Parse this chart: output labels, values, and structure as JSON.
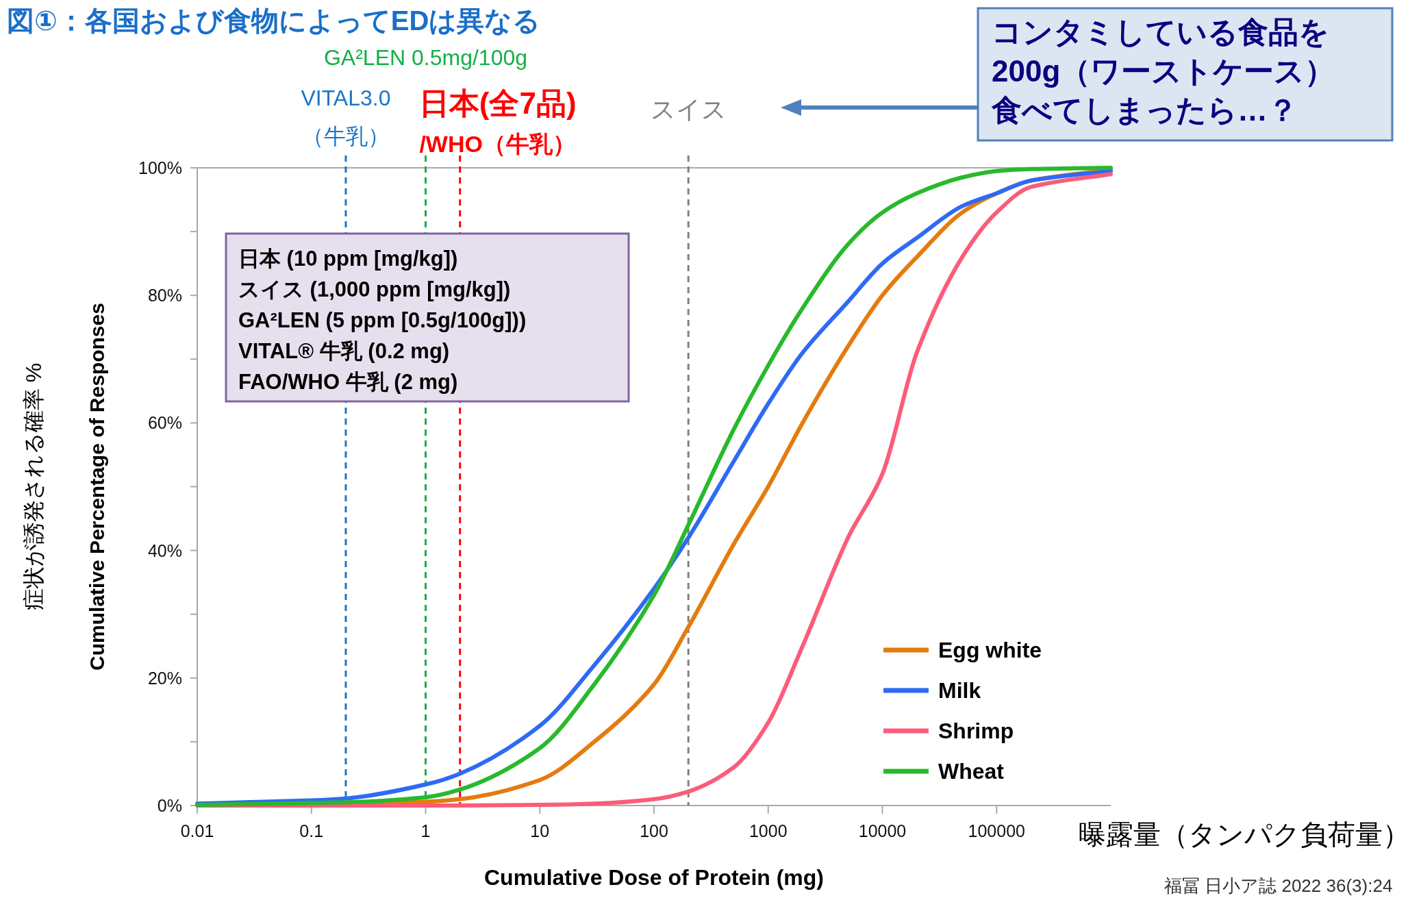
{
  "chart_data": {
    "type": "line",
    "title": "図①：各国および食物によってEDは異なる",
    "xlabel": "Cumulative Dose of Protein (mg)",
    "ylabel": "Cumulative Percentage of Responses",
    "log": "x",
    "xlim": [
      0.01,
      1000000
    ],
    "xticks": [
      0.01,
      0.1,
      1,
      10,
      100,
      1000,
      10000,
      100000
    ],
    "ylim": [
      0,
      100
    ],
    "yticks": [
      {
        "value": 0,
        "label": "0%"
      },
      {
        "value": 10,
        "label": null
      },
      {
        "value": 20,
        "label": "20%"
      },
      {
        "value": 30,
        "label": null
      },
      {
        "value": 40,
        "label": "40%"
      },
      {
        "value": 50,
        "label": null
      },
      {
        "value": 60,
        "label": "60%"
      },
      {
        "value": 70,
        "label": null
      },
      {
        "value": 80,
        "label": "80%"
      },
      {
        "value": 90,
        "label": null
      },
      {
        "value": 100,
        "label": "100%"
      }
    ],
    "x": [
      0.01,
      0.1,
      0.2,
      1,
      2,
      10,
      30,
      100,
      200,
      500,
      1000,
      2000,
      5000,
      10000,
      20000,
      50000,
      100000,
      200000,
      1000000
    ],
    "series": [
      {
        "name": "Egg white",
        "color": "#e57b0f",
        "values": [
          0.1,
          0.2,
          0.3,
          0.6,
          1,
          4,
          10,
          19,
          28,
          41,
          50,
          60,
          72,
          80,
          86,
          93,
          96,
          98,
          99.7
        ]
      },
      {
        "name": "Milk",
        "color": "#2e6af5",
        "values": [
          0.3,
          0.8,
          1.1,
          3.3,
          5,
          12.5,
          22,
          34,
          42,
          54,
          63,
          71,
          79,
          85,
          89,
          94,
          96,
          98,
          99.5
        ]
      },
      {
        "name": "Shrimp",
        "color": "#fb5c7a",
        "values": [
          0,
          0,
          0,
          0,
          0,
          0.1,
          0.3,
          1,
          2.2,
          6,
          13,
          25,
          42,
          52,
          71,
          86,
          93,
          97,
          99
        ]
      },
      {
        "name": "Wheat",
        "color": "#28b92c",
        "values": [
          0.1,
          0.4,
          0.5,
          1.3,
          2.5,
          9,
          19,
          33,
          44,
          59,
          69,
          78,
          88,
          93,
          96,
          98.5,
          99.5,
          99.8,
          100
        ]
      }
    ],
    "ref_lines": [
      {
        "axis": "x",
        "value": 0.2,
        "label": "VITAL3.0\n（牛乳）",
        "color": "#1b75c7",
        "line_style": "dashed"
      },
      {
        "axis": "x",
        "value": 1,
        "label": "GA²LEN 0.5mg/100g",
        "color": "#12b048",
        "line_style": "dashed"
      },
      {
        "axis": "x",
        "value": 2,
        "label": "日本(全7品)\n/WHO（牛乳）",
        "color": "#ff0000",
        "line_style": "dashed"
      },
      {
        "axis": "x",
        "value": 200,
        "label": "スイス",
        "color": "#808080",
        "line_style": "dashed"
      }
    ],
    "annotations": [
      "症状が誘発される確率 %",
      "曝露量（タンパク負荷量）",
      "日本 (10 ppm [mg/kg])",
      "スイス (1,000 ppm [mg/kg])",
      "GA²LEN (5 ppm [0.5g/100g]))",
      "VITAL® 牛乳 (0.2 mg)",
      "FAO/WHO 牛乳 (2 mg)",
      "コンタミしている食品を",
      "200g（ワーストケース）",
      "食べてしまったら…？",
      "福冨 日小ア誌 2022 36(3):24"
    ],
    "legend": "bottom right",
    "grid": false,
    "marker": "none",
    "line_style": "solid"
  }
}
